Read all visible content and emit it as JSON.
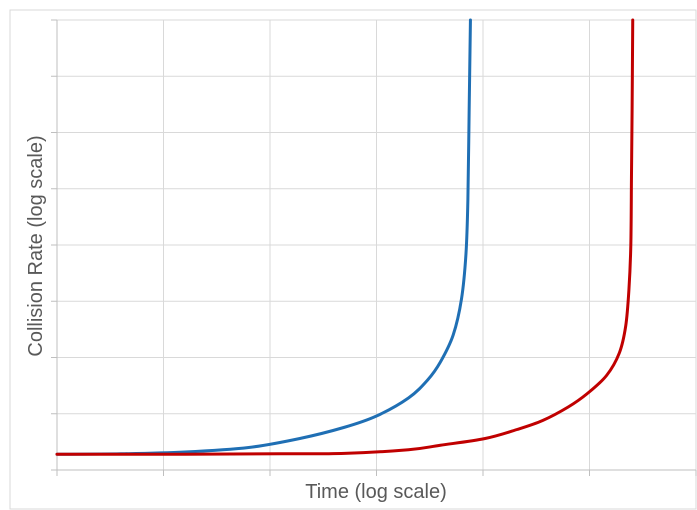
{
  "chart_data": {
    "type": "line",
    "title": "",
    "xlabel": "Time (log scale)",
    "ylabel": "Collision Rate (log scale)",
    "x_scale": "log",
    "y_scale": "log",
    "grid": true,
    "legend": "none",
    "series": [
      {
        "color": "#1F6FB4",
        "points": [
          [
            0.0,
            0.035
          ],
          [
            0.1,
            0.036
          ],
          [
            0.2,
            0.04
          ],
          [
            0.3,
            0.05
          ],
          [
            0.38,
            0.07
          ],
          [
            0.45,
            0.095
          ],
          [
            0.5,
            0.12
          ],
          [
            0.55,
            0.16
          ],
          [
            0.58,
            0.2
          ],
          [
            0.6,
            0.24
          ],
          [
            0.62,
            0.3
          ],
          [
            0.633,
            0.38
          ],
          [
            0.64,
            0.48
          ],
          [
            0.643,
            0.6
          ],
          [
            0.645,
            0.8
          ],
          [
            0.647,
            1.0
          ]
        ]
      },
      {
        "color": "#C00000",
        "points": [
          [
            0.0,
            0.035
          ],
          [
            0.2,
            0.035
          ],
          [
            0.35,
            0.036
          ],
          [
            0.45,
            0.037
          ],
          [
            0.55,
            0.045
          ],
          [
            0.6,
            0.055
          ],
          [
            0.67,
            0.07
          ],
          [
            0.72,
            0.09
          ],
          [
            0.76,
            0.11
          ],
          [
            0.8,
            0.14
          ],
          [
            0.83,
            0.17
          ],
          [
            0.86,
            0.21
          ],
          [
            0.88,
            0.26
          ],
          [
            0.89,
            0.32
          ],
          [
            0.895,
            0.4
          ],
          [
            0.898,
            0.5
          ],
          [
            0.899,
            0.65
          ],
          [
            0.9,
            0.8
          ],
          [
            0.901,
            1.0
          ]
        ]
      }
    ]
  }
}
